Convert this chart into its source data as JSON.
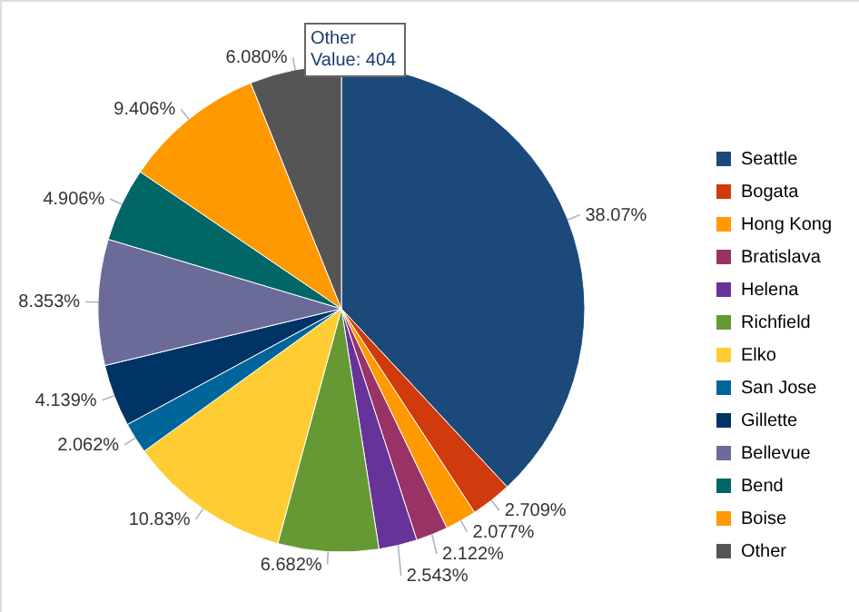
{
  "chart_data": {
    "type": "pie",
    "categories": [
      "Seattle",
      "Bogata",
      "Hong Kong",
      "Bratislava",
      "Helena",
      "Richfield",
      "Elko",
      "San Jose",
      "Gillette",
      "Bellevue",
      "Bend",
      "Boise",
      "Other"
    ],
    "values": [
      38.07,
      2.709,
      2.077,
      2.122,
      2.543,
      6.682,
      10.83,
      2.062,
      4.139,
      8.353,
      4.906,
      9.406,
      6.08
    ],
    "value_labels": [
      "38.07%",
      "2.709%",
      "2.077%",
      "2.122%",
      "2.543%",
      "6.682%",
      "10.83%",
      "2.062%",
      "4.139%",
      "8.353%",
      "4.906%",
      "9.406%",
      "6.080%"
    ],
    "colors": [
      "#1b4a7a",
      "#d03a0c",
      "#ff9900",
      "#993366",
      "#663399",
      "#669933",
      "#ffcc33",
      "#006699",
      "#003366",
      "#6b6b9a",
      "#006666",
      "#ff9900",
      "#555555"
    ],
    "legend": "right",
    "annotations": [
      "Other\nValue: 404"
    ]
  }
}
